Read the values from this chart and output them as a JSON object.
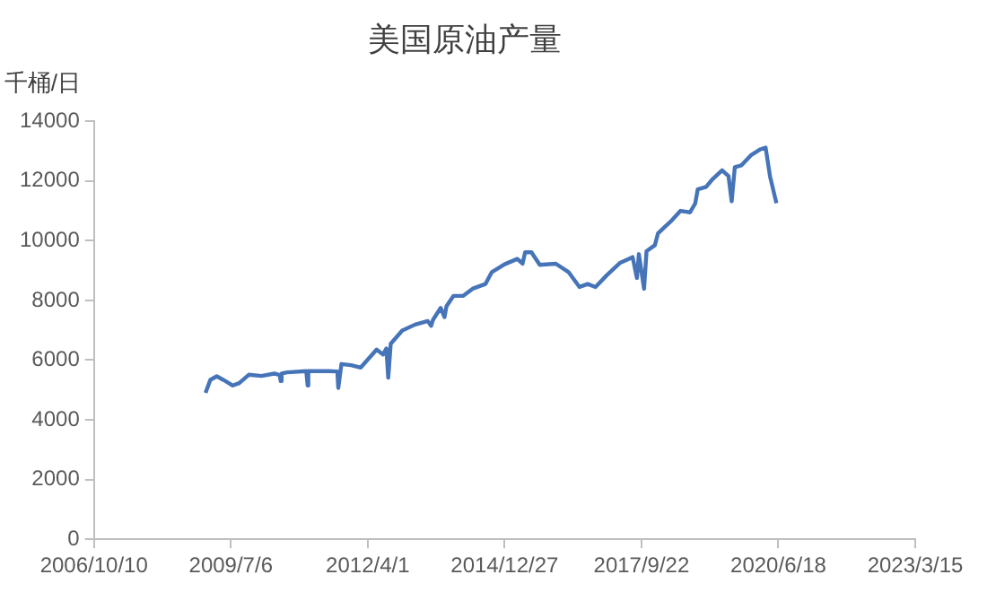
{
  "chart_data": {
    "type": "line",
    "title": "美国原油产量",
    "ylabel": "千桶/日",
    "x": [
      "2009-01-02",
      "2009-02-06",
      "2009-03-25",
      "2009-05-11",
      "2009-07-20",
      "2009-09-05",
      "2009-11-14",
      "2010-02-15",
      "2010-05-20",
      "2010-06-28",
      "2010-07-05",
      "2010-07-12",
      "2010-08-21",
      "2011-01-08",
      "2011-01-18",
      "2011-01-23",
      "2011-06-21",
      "2011-08-23",
      "2011-08-30",
      "2011-09-22",
      "2011-12-02",
      "2012-02-10",
      "2012-03-27",
      "2012-06-05",
      "2012-07-22",
      "2012-08-15",
      "2012-08-29",
      "2012-09-16",
      "2012-12-09",
      "2013-03-13",
      "2013-06-14",
      "2013-07-08",
      "2013-07-22",
      "2013-09-16",
      "2013-10-14",
      "2013-10-28",
      "2013-12-18",
      "2014-02-26",
      "2014-05-07",
      "2014-08-09",
      "2014-09-25",
      "2014-12-27",
      "2015-03-30",
      "2015-05-07",
      "2015-05-26",
      "2015-07-11",
      "2015-09-10",
      "2016-01-05",
      "2016-04-07",
      "2016-06-26",
      "2016-08-25",
      "2016-10-21",
      "2017-01-13",
      "2017-04-16",
      "2017-07-19",
      "2017-08-20",
      "2017-09-03",
      "2017-10-11",
      "2017-10-29",
      "2017-12-29",
      "2018-01-21",
      "2018-04-25",
      "2018-07-04",
      "2018-09-12",
      "2018-10-20",
      "2018-11-07",
      "2019-01-07",
      "2019-02-23",
      "2019-05-04",
      "2019-06-20",
      "2019-07-13",
      "2019-08-05",
      "2019-09-21",
      "2019-11-30",
      "2020-02-08",
      "2020-03-17",
      "2020-04-18",
      "2020-06-04"
    ],
    "series": [
      {
        "color": "#4674b8",
        "values": [
          4900,
          5340,
          5460,
          5340,
          5150,
          5230,
          5510,
          5470,
          5550,
          5500,
          5300,
          5550,
          5590,
          5630,
          5150,
          5630,
          5630,
          5620,
          5070,
          5870,
          5830,
          5750,
          5990,
          6350,
          6190,
          6390,
          5410,
          6550,
          6990,
          7190,
          7310,
          7150,
          7350,
          7750,
          7440,
          7800,
          8150,
          8150,
          8390,
          8550,
          8950,
          9210,
          9390,
          9230,
          9610,
          9610,
          9190,
          9230,
          8950,
          8450,
          8550,
          8450,
          8850,
          9250,
          9450,
          8750,
          9550,
          8390,
          9650,
          9850,
          10250,
          10650,
          11000,
          10950,
          11250,
          11720,
          11800,
          12060,
          12360,
          12160,
          11320,
          12460,
          12520,
          12860,
          13060,
          13120,
          12160,
          11260
        ]
      }
    ],
    "xlim": [
      "2006-10-10",
      "2023-03-15"
    ],
    "xticks": [
      {
        "value": "2006-10-10",
        "label": "2006/10/10"
      },
      {
        "value": "2009-07-06",
        "label": "2009/7/6"
      },
      {
        "value": "2012-04-01",
        "label": "2012/4/1"
      },
      {
        "value": "2014-12-27",
        "label": "2014/12/27"
      },
      {
        "value": "2017-09-22",
        "label": "2017/9/22"
      },
      {
        "value": "2020-06-18",
        "label": "2020/6/18"
      },
      {
        "value": "2023-03-15",
        "label": "2023/3/15"
      }
    ],
    "ylim": [
      0,
      14000
    ],
    "yticks": [
      0,
      2000,
      4000,
      6000,
      8000,
      10000,
      12000,
      14000
    ],
    "grid": false,
    "legend": false,
    "marker": "none",
    "line_style": "solid"
  }
}
